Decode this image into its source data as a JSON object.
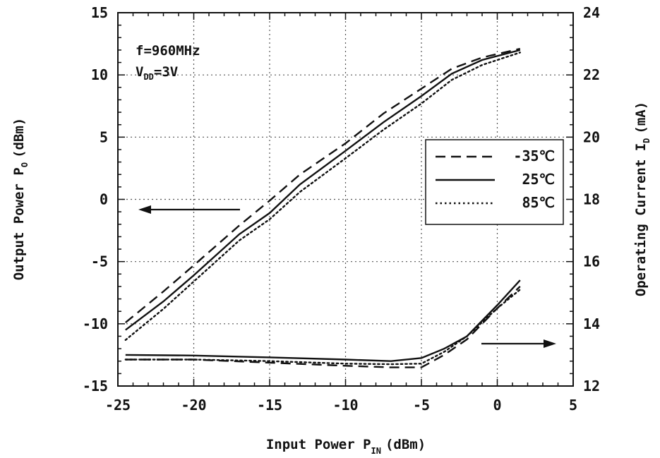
{
  "chart_data": {
    "type": "line",
    "title": "",
    "xlabel": "Input Power P",
    "xlabel_sub": "IN",
    "xlabel_unit": "(dBm)",
    "ylabel_left": "Output Power P",
    "ylabel_left_sub": "O",
    "ylabel_left_unit": "(dBm)",
    "ylabel_right": "Operating Current I",
    "ylabel_right_sub": "D",
    "ylabel_right_unit": "(mA)",
    "xlim": [
      -25,
      5
    ],
    "ylim_left": [
      -15,
      15
    ],
    "ylim_right": [
      12,
      24
    ],
    "x_ticks": [
      -25,
      -20,
      -15,
      -10,
      -5,
      0,
      5
    ],
    "x_tick_labels": [
      "-25",
      "-20",
      "-15",
      "-10",
      "-5",
      "0",
      "5"
    ],
    "y_left_ticks": [
      -15,
      -10,
      -5,
      0,
      5,
      10,
      15
    ],
    "y_left_tick_labels": [
      "-15",
      "-10",
      "-5",
      "0",
      "5",
      "10",
      "15"
    ],
    "y_right_ticks": [
      12,
      14,
      16,
      18,
      20,
      22,
      24
    ],
    "y_right_tick_labels": [
      "12",
      "14",
      "16",
      "18",
      "20",
      "22",
      "24"
    ],
    "grid": true,
    "legend_position": "right-middle",
    "annotations": {
      "freq": "f=960MHz",
      "vdd_label": "V",
      "vdd_sub": "DD",
      "vdd_value": "=3V"
    },
    "series": [
      {
        "name": "-35℃",
        "axis": "left",
        "style": "dashed",
        "points": [
          [
            -24.5,
            -9.9
          ],
          [
            -22,
            -7.4
          ],
          [
            -20,
            -5.3
          ],
          [
            -17,
            -2.1
          ],
          [
            -15,
            -0.1
          ],
          [
            -13,
            2.0
          ],
          [
            -10,
            4.5
          ],
          [
            -7.5,
            6.9
          ],
          [
            -5,
            8.9
          ],
          [
            -3,
            10.5
          ],
          [
            -1,
            11.4
          ],
          [
            1.5,
            12.1
          ]
        ]
      },
      {
        "name": "25℃",
        "axis": "left",
        "style": "solid",
        "points": [
          [
            -24.5,
            -10.5
          ],
          [
            -22,
            -8.2
          ],
          [
            -20,
            -6.1
          ],
          [
            -17,
            -2.8
          ],
          [
            -15,
            -1.1
          ],
          [
            -13,
            1.2
          ],
          [
            -10,
            3.9
          ],
          [
            -7.5,
            6.2
          ],
          [
            -5,
            8.3
          ],
          [
            -3,
            10.1
          ],
          [
            -1,
            11.2
          ],
          [
            1.5,
            12.0
          ]
        ]
      },
      {
        "name": "85℃",
        "axis": "left",
        "style": "dotted",
        "points": [
          [
            -24.5,
            -11.3
          ],
          [
            -22,
            -8.8
          ],
          [
            -20,
            -6.6
          ],
          [
            -17,
            -3.3
          ],
          [
            -15,
            -1.6
          ],
          [
            -13,
            0.6
          ],
          [
            -10,
            3.3
          ],
          [
            -7.5,
            5.6
          ],
          [
            -5,
            7.7
          ],
          [
            -3,
            9.6
          ],
          [
            -1,
            10.8
          ],
          [
            1.5,
            11.8
          ]
        ]
      },
      {
        "name": "-35℃",
        "axis": "right",
        "style": "dashed",
        "points": [
          [
            -24.5,
            12.85
          ],
          [
            -20,
            12.85
          ],
          [
            -15,
            12.75
          ],
          [
            -10,
            12.65
          ],
          [
            -7,
            12.6
          ],
          [
            -5,
            12.6
          ],
          [
            -3.5,
            13.0
          ],
          [
            -2,
            13.5
          ],
          [
            0,
            14.5
          ],
          [
            1.5,
            15.2
          ]
        ]
      },
      {
        "name": "25℃",
        "axis": "right",
        "style": "solid",
        "points": [
          [
            -24.5,
            13.0
          ],
          [
            -20,
            12.98
          ],
          [
            -15,
            12.92
          ],
          [
            -10,
            12.85
          ],
          [
            -7,
            12.8
          ],
          [
            -5,
            12.9
          ],
          [
            -3.5,
            13.2
          ],
          [
            -2,
            13.6
          ],
          [
            0,
            14.6
          ],
          [
            1.5,
            15.4
          ]
        ]
      },
      {
        "name": "85℃",
        "axis": "right",
        "style": "dotted",
        "points": [
          [
            -24.5,
            12.85
          ],
          [
            -20,
            12.85
          ],
          [
            -15,
            12.8
          ],
          [
            -10,
            12.72
          ],
          [
            -7,
            12.7
          ],
          [
            -5,
            12.72
          ],
          [
            -3.5,
            13.1
          ],
          [
            -2,
            13.6
          ],
          [
            0,
            14.5
          ],
          [
            1.5,
            15.1
          ]
        ]
      }
    ]
  }
}
